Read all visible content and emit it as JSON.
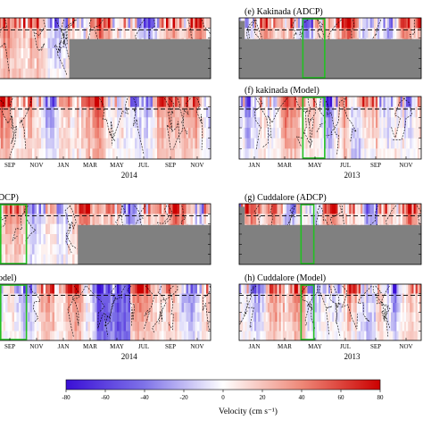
{
  "chart_data": {
    "type": "heatmap",
    "colormap": {
      "min": -80,
      "max": 80,
      "colors": [
        "#3a0fd6",
        "#7f73e8",
        "#ffffff",
        "#ee8878",
        "#cc0000"
      ],
      "ticks": [
        "-80",
        "-60",
        "-40",
        "-20",
        "0",
        "20",
        "40",
        "60",
        "80"
      ],
      "label": "Velocity (cm s⁻¹)"
    },
    "colors": {
      "no_data": "#808080",
      "highlight_box": "#22c022",
      "contour": "#000000"
    },
    "panels": [
      {
        "id": "ul1",
        "title": "",
        "months": [],
        "year": "",
        "gap_start": 0.34,
        "highlight": null
      },
      {
        "id": "ul2",
        "title": "",
        "months": [
          "SEP",
          "NOV",
          "JAN",
          "MAR",
          "MAY",
          "JUL",
          "SEP",
          "NOV"
        ],
        "year": "2014",
        "gap_start": null,
        "highlight": null
      },
      {
        "id": "e",
        "title": "(e) Kakinada (ADCP)",
        "months": [],
        "year": "",
        "gap_start": 0.0,
        "highlight": [
          0.35,
          0.47
        ]
      },
      {
        "id": "f",
        "title": "(f) kakinada (Model)",
        "months": [
          "JAN",
          "MAR",
          "MAY",
          "JUL",
          "SEP",
          "NOV"
        ],
        "year": "2013",
        "gap_start": null,
        "highlight": [
          0.35,
          0.47
        ]
      },
      {
        "id": "ll1",
        "title": "DCP)",
        "months": [],
        "year": "",
        "gap_start": 0.38,
        "highlight": [
          0.02,
          0.14
        ]
      },
      {
        "id": "ll2",
        "title": "odel)",
        "months": [
          "SEP",
          "NOV",
          "JAN",
          "MAR",
          "MAY",
          "JUL",
          "SEP",
          "NOV"
        ],
        "year": "2014",
        "gap_start": null,
        "highlight": [
          0.02,
          0.14
        ]
      },
      {
        "id": "g",
        "title": "(g) Cuddalore (ADCP)",
        "months": [],
        "year": "",
        "gap_start": 0.0,
        "highlight": [
          0.34,
          0.41
        ]
      },
      {
        "id": "h",
        "title": "(h) Cuddalore (Model)",
        "months": [
          "JAN",
          "MAR",
          "MAY",
          "JUL",
          "SEP",
          "NOV"
        ],
        "year": "2013",
        "gap_start": null,
        "highlight": [
          0.34,
          0.41
        ]
      }
    ]
  }
}
